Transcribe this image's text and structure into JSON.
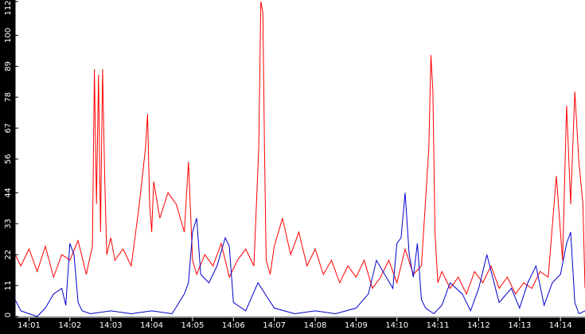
{
  "chart_data": {
    "type": "line",
    "title": "",
    "xlabel": "",
    "ylabel": "",
    "ylim": [
      0,
      112
    ],
    "grid": false,
    "legend": "none",
    "colors": {
      "background": "#000000",
      "plot_background": "#ffffff",
      "axis": "#000000",
      "text": "#ffffff",
      "series_red": "#ff0000",
      "series_blue": "#0000cc"
    },
    "y_ticks": [
      0,
      11,
      22,
      33,
      44,
      56,
      67,
      78,
      89,
      100,
      112
    ],
    "x_ticks": [
      "14:01",
      "14:02",
      "14:03",
      "14:04",
      "14:05",
      "14:06",
      "14:07",
      "14:08",
      "14:09",
      "14:10",
      "14:11",
      "14:12",
      "14:13",
      "14:14"
    ],
    "x_range_minutes": [
      0.66,
      14.6
    ],
    "series": [
      {
        "color": "#ff0000",
        "x": [
          0.66,
          0.8,
          1.0,
          1.2,
          1.4,
          1.6,
          1.8,
          2.0,
          2.2,
          2.4,
          2.55,
          2.6,
          2.65,
          2.7,
          2.75,
          2.8,
          2.85,
          2.9,
          3.0,
          3.1,
          3.3,
          3.5,
          3.7,
          3.85,
          3.9,
          3.95,
          4.0,
          4.05,
          4.2,
          4.4,
          4.6,
          4.8,
          4.9,
          5.0,
          5.1,
          5.3,
          5.5,
          5.7,
          5.9,
          6.1,
          6.3,
          6.5,
          6.62,
          6.67,
          6.72,
          6.76,
          6.8,
          6.9,
          7.0,
          7.2,
          7.4,
          7.6,
          7.8,
          8.0,
          8.2,
          8.4,
          8.6,
          8.8,
          9.0,
          9.2,
          9.4,
          9.6,
          9.8,
          10.0,
          10.2,
          10.4,
          10.6,
          10.78,
          10.83,
          10.88,
          10.93,
          11.0,
          11.1,
          11.3,
          11.5,
          11.7,
          11.9,
          12.1,
          12.3,
          12.5,
          12.7,
          12.9,
          13.1,
          13.3,
          13.5,
          13.7,
          13.9,
          14.05,
          14.15,
          14.25,
          14.35,
          14.45,
          14.55,
          14.6
        ],
        "y": [
          22,
          18,
          24,
          16,
          25,
          14,
          22,
          20,
          27,
          15,
          25,
          88,
          40,
          86,
          30,
          88,
          50,
          22,
          28,
          20,
          24,
          18,
          40,
          60,
          72,
          40,
          30,
          48,
          35,
          44,
          40,
          30,
          55,
          20,
          15,
          22,
          18,
          26,
          14,
          20,
          24,
          18,
          60,
          112,
          108,
          60,
          20,
          15,
          25,
          35,
          22,
          30,
          18,
          24,
          15,
          20,
          12,
          18,
          14,
          20,
          10,
          14,
          20,
          12,
          24,
          15,
          18,
          60,
          93,
          80,
          30,
          12,
          16,
          10,
          14,
          8,
          16,
          12,
          18,
          10,
          14,
          8,
          12,
          10,
          16,
          14,
          50,
          20,
          75,
          40,
          80,
          55,
          40,
          10
        ]
      },
      {
        "color": "#0000cc",
        "x": [
          0.66,
          0.8,
          1.0,
          1.2,
          1.4,
          1.6,
          1.8,
          1.9,
          2.0,
          2.1,
          2.2,
          2.3,
          2.5,
          3.0,
          3.5,
          4.0,
          4.5,
          4.8,
          4.9,
          5.0,
          5.1,
          5.2,
          5.4,
          5.6,
          5.8,
          5.9,
          6.0,
          6.3,
          6.6,
          7.0,
          7.5,
          8.0,
          8.5,
          9.0,
          9.3,
          9.5,
          9.7,
          9.9,
          10.0,
          10.1,
          10.2,
          10.3,
          10.4,
          10.5,
          10.6,
          10.7,
          10.9,
          11.1,
          11.3,
          11.6,
          11.8,
          12.0,
          12.2,
          12.5,
          12.8,
          13.0,
          13.2,
          13.4,
          13.6,
          13.8,
          14.0,
          14.15,
          14.25,
          14.35,
          14.45,
          14.6
        ],
        "y": [
          6,
          2,
          1,
          0,
          3,
          8,
          10,
          4,
          26,
          22,
          5,
          2,
          1,
          2,
          1,
          2,
          1,
          8,
          12,
          30,
          35,
          15,
          12,
          18,
          28,
          25,
          5,
          2,
          12,
          3,
          1,
          2,
          1,
          3,
          8,
          20,
          15,
          10,
          26,
          28,
          44,
          22,
          14,
          26,
          6,
          3,
          1,
          4,
          12,
          8,
          2,
          10,
          22,
          5,
          10,
          3,
          12,
          18,
          4,
          12,
          15,
          26,
          30,
          5,
          1,
          2
        ]
      }
    ]
  }
}
